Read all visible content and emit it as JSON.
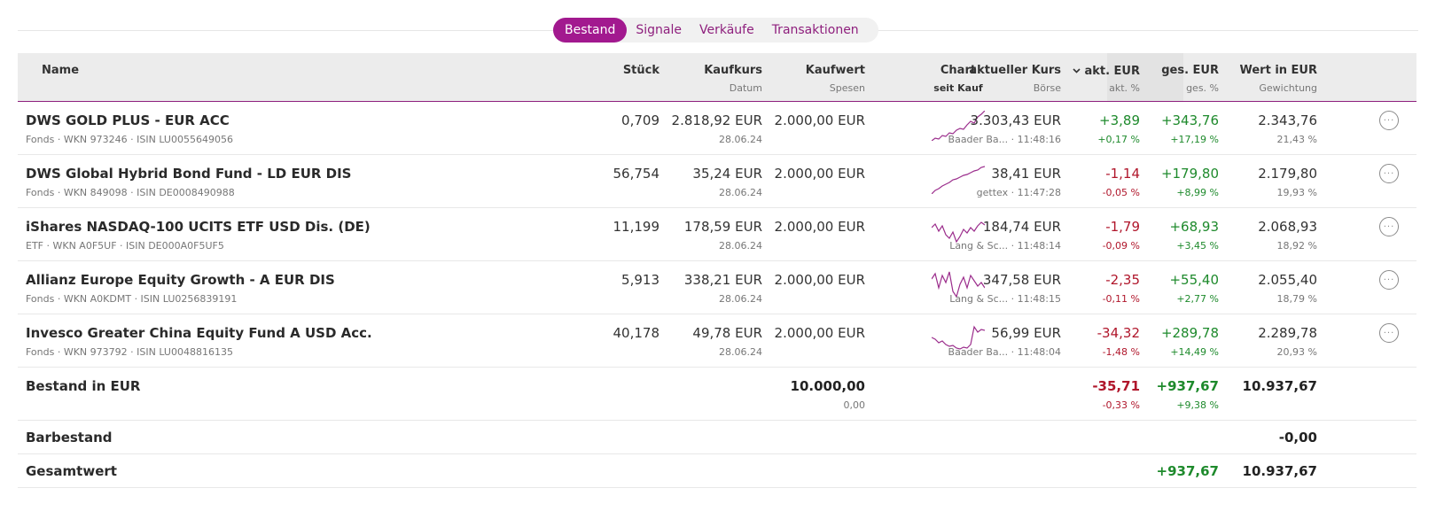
{
  "tabs": [
    {
      "label": "Bestand",
      "active": true
    },
    {
      "label": "Signale"
    },
    {
      "label": "Verkäufe"
    },
    {
      "label": "Transaktionen"
    }
  ],
  "header": {
    "name": "Name",
    "qty": "Stück",
    "buy_price": "Kaufkurs",
    "buy_price_sub": "Datum",
    "buy_value": "Kaufwert",
    "buy_value_sub": "Spesen",
    "chart": "Chart",
    "chart_sub": "seit Kauf",
    "current_price": "aktueller Kurs",
    "current_price_sub": "Börse",
    "day_change": "akt. EUR",
    "day_change_sub": "akt. %",
    "total_change": "ges. EUR",
    "total_change_sub": "ges. %",
    "value": "Wert in EUR",
    "value_sub": "Gewichtung",
    "sort_icon": "chevron-down-icon"
  },
  "rows": [
    {
      "name": "DWS GOLD PLUS - EUR ACC",
      "info": "Fonds · WKN 973246 · ISIN LU0055649056",
      "qty": "0,709",
      "buy_price": "2.818,92 EUR",
      "buy_date": "28.06.24",
      "buy_value": "2.000,00 EUR",
      "price": "3.303,43 EUR",
      "exchange": "Baader Ba... · 11:48:16",
      "day_eur": "+3,89",
      "day_pct": "+0,17 %",
      "tot_eur": "+343,76",
      "tot_pct": "+17,19 %",
      "value": "2.343,76",
      "weight": "21,43 %",
      "spark": [
        0,
        3,
        2,
        6,
        5,
        9,
        8,
        12,
        14,
        13,
        18,
        22,
        20,
        27,
        30,
        34
      ]
    },
    {
      "name": "DWS Global Hybrid Bond Fund - LD EUR DIS",
      "info": "Fonds · WKN 849098 · ISIN DE0008490988",
      "qty": "56,754",
      "buy_price": "35,24 EUR",
      "buy_date": "28.06.24",
      "buy_value": "2.000,00 EUR",
      "price": "38,41 EUR",
      "exchange": "gettex · 11:47:28",
      "day_eur": "-1,14",
      "day_pct": "-0,05 %",
      "tot_eur": "+179,80",
      "tot_pct": "+8,99 %",
      "value": "2.179,80",
      "weight": "19,93 %",
      "spark": [
        0,
        4,
        6,
        9,
        11,
        13,
        16,
        17,
        19,
        21,
        22,
        24,
        26,
        27,
        30,
        31
      ]
    },
    {
      "name": "iShares NASDAQ-100 UCITS ETF USD Dis. (DE)",
      "info": "ETF · WKN A0F5UF · ISIN DE000A0F5UF5",
      "qty": "11,199",
      "buy_price": "178,59 EUR",
      "buy_date": "28.06.24",
      "buy_value": "2.000,00 EUR",
      "price": "184,74 EUR",
      "exchange": "Lang & Sc... · 11:48:14",
      "day_eur": "-1,79",
      "day_pct": "-0,09 %",
      "tot_eur": "+68,93",
      "tot_pct": "+3,45 %",
      "value": "2.068,93",
      "weight": "18,92 %",
      "spark": [
        22,
        26,
        18,
        24,
        14,
        10,
        17,
        6,
        12,
        20,
        16,
        22,
        18,
        24,
        28,
        25
      ]
    },
    {
      "name": "Allianz Europe Equity Growth - A EUR DIS",
      "info": "Fonds · WKN A0KDMT · ISIN LU0256839191",
      "qty": "5,913",
      "buy_price": "338,21 EUR",
      "buy_date": "28.06.24",
      "buy_value": "2.000,00 EUR",
      "price": "347,58 EUR",
      "exchange": "Lang & Sc... · 11:48:15",
      "day_eur": "-2,35",
      "day_pct": "-0,11 %",
      "tot_eur": "+55,40",
      "tot_pct": "+2,77 %",
      "value": "2.055,40",
      "weight": "18,79 %",
      "spark": [
        24,
        30,
        14,
        28,
        20,
        32,
        10,
        4,
        18,
        26,
        14,
        28,
        22,
        16,
        20,
        14
      ]
    },
    {
      "name": "Invesco Greater China Equity Fund A USD Acc.",
      "info": "Fonds · WKN 973792 · ISIN LU0048816135",
      "qty": "40,178",
      "buy_price": "49,78 EUR",
      "buy_date": "28.06.24",
      "buy_value": "2.000,00 EUR",
      "price": "56,99 EUR",
      "exchange": "Baader Ba... · 11:48:04",
      "day_eur": "-34,32",
      "day_pct": "-1,48 %",
      "tot_eur": "+289,78",
      "tot_pct": "+14,49 %",
      "value": "2.289,78",
      "weight": "20,93 %",
      "spark": [
        18,
        16,
        12,
        14,
        10,
        8,
        9,
        6,
        5,
        7,
        6,
        10,
        30,
        24,
        27,
        26
      ]
    }
  ],
  "summary": {
    "label": "Bestand in EUR",
    "buy_value": "10.000,00",
    "fees": "0,00",
    "day_eur": "-35,71",
    "day_pct": "-0,33 %",
    "tot_eur": "+937,67",
    "tot_pct": "+9,38 %",
    "value": "10.937,67"
  },
  "cash": {
    "label": "Barbestand",
    "value": "-0,00"
  },
  "total": {
    "label": "Gesamtwert",
    "tot_eur": "+937,67",
    "value": "10.937,67"
  },
  "colors": {
    "accent": "#a2198f",
    "positive": "#1e8a2c",
    "negative": "#b0162b",
    "spark": "#9b2d8c"
  }
}
